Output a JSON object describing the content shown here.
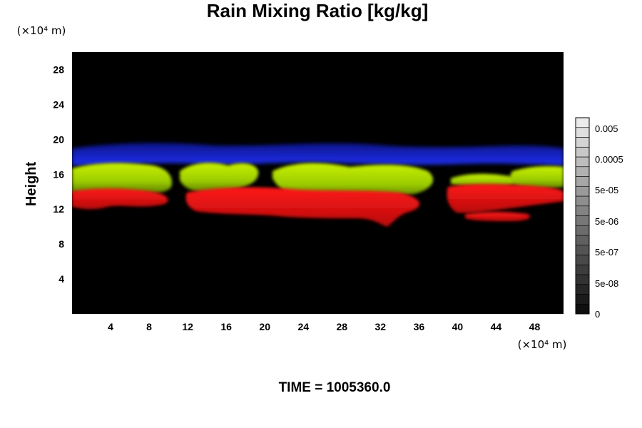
{
  "chart_data": {
    "type": "heatmap",
    "title": "Rain Mixing Ratio [kg/kg]",
    "xlabel": "",
    "ylabel": "Height",
    "x_unit_label": "(×10⁴ m)",
    "y_unit_label": "(×10⁴ m)",
    "x_ticks": [
      4,
      8,
      12,
      16,
      20,
      24,
      28,
      32,
      36,
      40,
      44,
      48
    ],
    "y_ticks": [
      4,
      8,
      12,
      16,
      20,
      24,
      28
    ],
    "xlim": [
      0,
      51
    ],
    "ylim": [
      0,
      30
    ],
    "colorbar": {
      "scale": "log",
      "labels": [
        "0.005",
        "0.0005",
        "5e-05",
        "5e-06",
        "5e-07",
        "5e-08",
        "0"
      ],
      "levels": 20
    },
    "layers": [
      {
        "name": "",
        "color": "#1a2be0",
        "description_levels": [
          17.5,
          19.3
        ]
      },
      {
        "name": "",
        "color": "#aee000",
        "description_levels": [
          13.8,
          17.0
        ]
      },
      {
        "name": "",
        "color": "#e01414",
        "description_levels": [
          10.5,
          14.2
        ]
      }
    ],
    "time_label": "TIME = 1005360.0"
  },
  "colors": {
    "background": "#000000",
    "blue_layer": "#1a2be0",
    "green_layer": "#aee000",
    "red_layer": "#e01414"
  }
}
